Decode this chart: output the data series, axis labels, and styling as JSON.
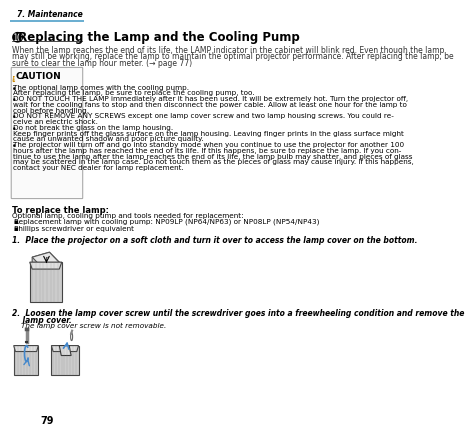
{
  "bg_color": "#ffffff",
  "header_line_color": "#4fa0c8",
  "header_text": "7. Maintenance",
  "header_text_color": "#000000",
  "title_number": "➓",
  "title_text": " Replacing the Lamp and the Cooling Pump",
  "title_color": "#000000",
  "body_text_color": "#333333",
  "caution_color": "#cc8800",
  "caution_bg": "#ffffff",
  "page_number": "79",
  "intro_text": "When the lamp reaches the end of its life, the LAMP indicator in the cabinet will blink red. Even though the lamp\nmay still be working, replace the lamp to maintain the optimal projector performance. After replacing the lamp, be\nsure to clear the lamp hour meter. (→ page 77)",
  "caution_title": "CAUTION",
  "bullet_points": [
    "The optional lamp comes with the cooling pump.\n    After replacing the lamp, be sure to replace the cooling pump, too.",
    "DO NOT TOUCH THE LAMP immediately after it has been used. It will be extremely hot. Turn the projector off,\n    wait for the cooling fans to stop and then disconnect the power cable. Allow at least one hour for the lamp to\n    cool before handling.",
    "DO NOT REMOVE ANY SCREWS except one lamp cover screw and two lamp housing screws. You could re-\n    ceive an electric shock.",
    "Do not break the glass on the lamp housing.\n    Keep finger prints off the glass surface on the lamp housing. Leaving finger prints in the glass surface might\n    cause an unwanted shadow and poor picture quality.",
    "The projector will turn off and go into standby mode when you continue to use the projector for another 100\n    hours after the lamp has reached the end of its life. If this happens, be sure to replace the lamp. If you con-\n    tinue to use the lamp after the lamp reaches the end of its life, the lamp bulb may shatter, and pieces of glass\n    may be scattered in the lamp case. Do not touch them as the pieces of glass may cause injury. If this happens,\n    contact your NEC dealer for lamp replacement."
  ],
  "replace_title": "To replace the lamp:",
  "replace_intro": "Optional lamp, cooling pump and tools needed for replacement:",
  "replace_items": [
    "Replacement lamp with cooling pump: NP09LP (NP64/NP63) or NP08LP (NP54/NP43)",
    "Phillips screwdriver or equivalent"
  ],
  "step1_text": "1.  Place the projector on a soft cloth and turn it over to access the lamp cover on the bottom.",
  "step2_text": "2.  Loosen the lamp cover screw until the screwdriver goes into a freewheeling condition and remove the\n    lamp cover.",
  "step2_sub": "The lamp cover screw is not removable.",
  "font_size_body": 5.5,
  "font_size_title": 8.5,
  "font_size_header": 5.5,
  "font_size_caution": 6.5,
  "font_size_step": 5.5
}
